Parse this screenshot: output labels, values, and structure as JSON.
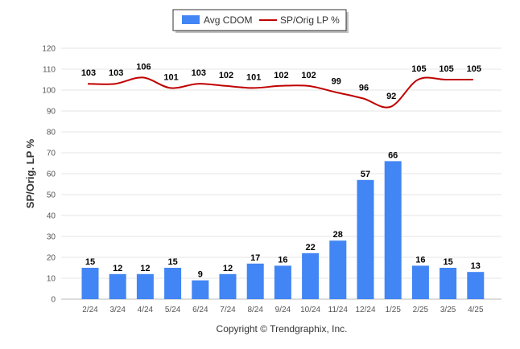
{
  "chart_data": {
    "type": "bar",
    "categories": [
      "2/24",
      "3/24",
      "4/24",
      "5/24",
      "6/24",
      "7/24",
      "8/24",
      "9/24",
      "10/24",
      "11/24",
      "12/24",
      "1/25",
      "2/25",
      "3/25",
      "4/25"
    ],
    "series": [
      {
        "name": "Avg CDOM",
        "type": "bar",
        "color": "#4285f4",
        "values": [
          15,
          12,
          12,
          15,
          9,
          12,
          17,
          16,
          22,
          28,
          57,
          66,
          16,
          15,
          13
        ]
      },
      {
        "name": "SP/Orig LP %",
        "type": "line",
        "color": "#c00000",
        "values": [
          103,
          103,
          106,
          101,
          103,
          102,
          101,
          102,
          102,
          99,
          96,
          92,
          105,
          105,
          105
        ]
      }
    ],
    "ylabel": "SP/Orig. LP %",
    "xlabel": "",
    "ylim": [
      0,
      120
    ],
    "yticks": [
      0,
      10,
      20,
      30,
      40,
      50,
      60,
      70,
      80,
      90,
      100,
      110,
      120
    ],
    "grid": true,
    "legend": "top-center",
    "credit": "Copyright © Trendgraphix, Inc."
  }
}
